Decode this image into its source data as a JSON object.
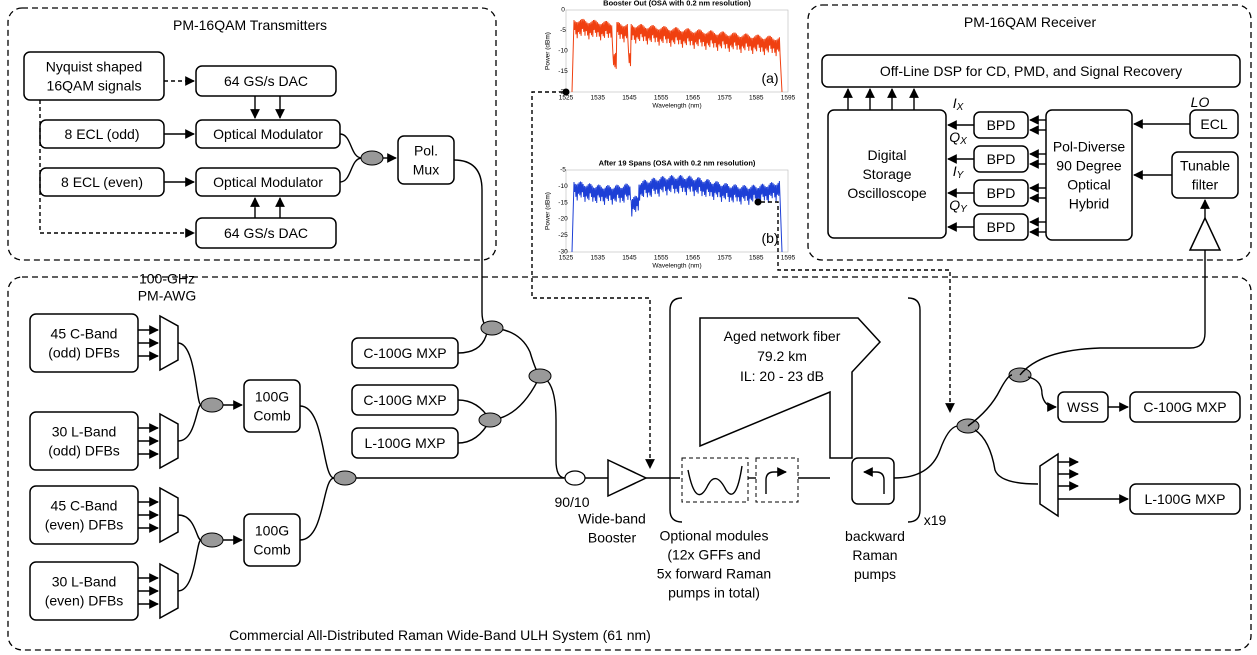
{
  "transmitters": {
    "title": "PM-16QAM Transmitters",
    "signals": [
      "Nyquist shaped",
      "16QAM signals"
    ],
    "dac_top": "64 GS/s DAC",
    "dac_bottom": "64 GS/s DAC",
    "ecl_odd": "8 ECL (odd)",
    "ecl_even": "8 ECL (even)",
    "modulator_top": "Optical Modulator",
    "modulator_bottom": "Optical Modulator",
    "pol_mux": [
      "Pol.",
      "Mux"
    ]
  },
  "receiver": {
    "title": "PM-16QAM Receiver",
    "dsp": "Off-Line DSP for CD, PMD, and Signal Recovery",
    "oscilloscope": [
      "Digital",
      "Storage",
      "Oscilloscope"
    ],
    "bpd": [
      "BPD",
      "BPD",
      "BPD",
      "BPD"
    ],
    "channels": [
      {
        "main": "I",
        "sub": "X"
      },
      {
        "main": "Q",
        "sub": "X"
      },
      {
        "main": "I",
        "sub": "Y"
      },
      {
        "main": "Q",
        "sub": "Y"
      }
    ],
    "hybrid": [
      "Pol-Diverse",
      "90 Degree",
      "Optical",
      "Hybrid"
    ],
    "lo": "LO",
    "ecl": "ECL",
    "filter": [
      "Tunable",
      "filter"
    ]
  },
  "spectra": [
    {
      "title": "Booster Out (OSA with 0.2 nm resolution)",
      "tag": "(a)",
      "ylabel": "Power (dBm)",
      "xlabel": "Wavelength (nm)",
      "yticks": [
        0,
        -5,
        -10,
        -15,
        -20
      ],
      "xticks": [
        1525,
        1535,
        1545,
        1555,
        1565,
        1575,
        1585,
        1595
      ]
    },
    {
      "title": "After 19 Spans (OSA with 0.2 nm resolution)",
      "tag": "(b)",
      "ylabel": "Power (dBm)",
      "xlabel": "Wavelength (nm)",
      "yticks": [
        -5,
        -10,
        -15,
        -20,
        -25,
        -30
      ],
      "xticks": [
        1525,
        1535,
        1545,
        1555,
        1565,
        1575,
        1585,
        1595
      ]
    }
  ],
  "system": {
    "caption": "Commercial All-Distributed Raman Wide-Band ULH System (61 nm)",
    "awg": [
      "100-GHz",
      "PM-AWG"
    ],
    "lasers": [
      [
        "45 C-Band",
        "(odd) DFBs"
      ],
      [
        "30 L-Band",
        "(odd) DFBs"
      ],
      [
        "45 C-Band",
        "(even) DFBs"
      ],
      [
        "30 L-Band",
        "(even) DFBs"
      ]
    ],
    "combs": [
      [
        "100G",
        "Comb"
      ],
      [
        "100G",
        "Comb"
      ]
    ],
    "mxp_tx": [
      "C-100G MXP",
      "C-100G MXP",
      "L-100G MXP"
    ],
    "coupler": "90/10",
    "booster": [
      "Wide-band",
      "Booster"
    ],
    "optional": [
      "Optional modules",
      "(12x GFFs and",
      "5x forward Raman",
      "pumps in total)"
    ],
    "fiber": [
      "Aged network fiber",
      "79.2 km",
      "IL: 20 - 23 dB"
    ],
    "backward": [
      "backward",
      "Raman",
      "pumps"
    ],
    "spans": "x19",
    "wss": "WSS",
    "mxp_rx": [
      "C-100G MXP",
      "L-100G MXP"
    ]
  }
}
